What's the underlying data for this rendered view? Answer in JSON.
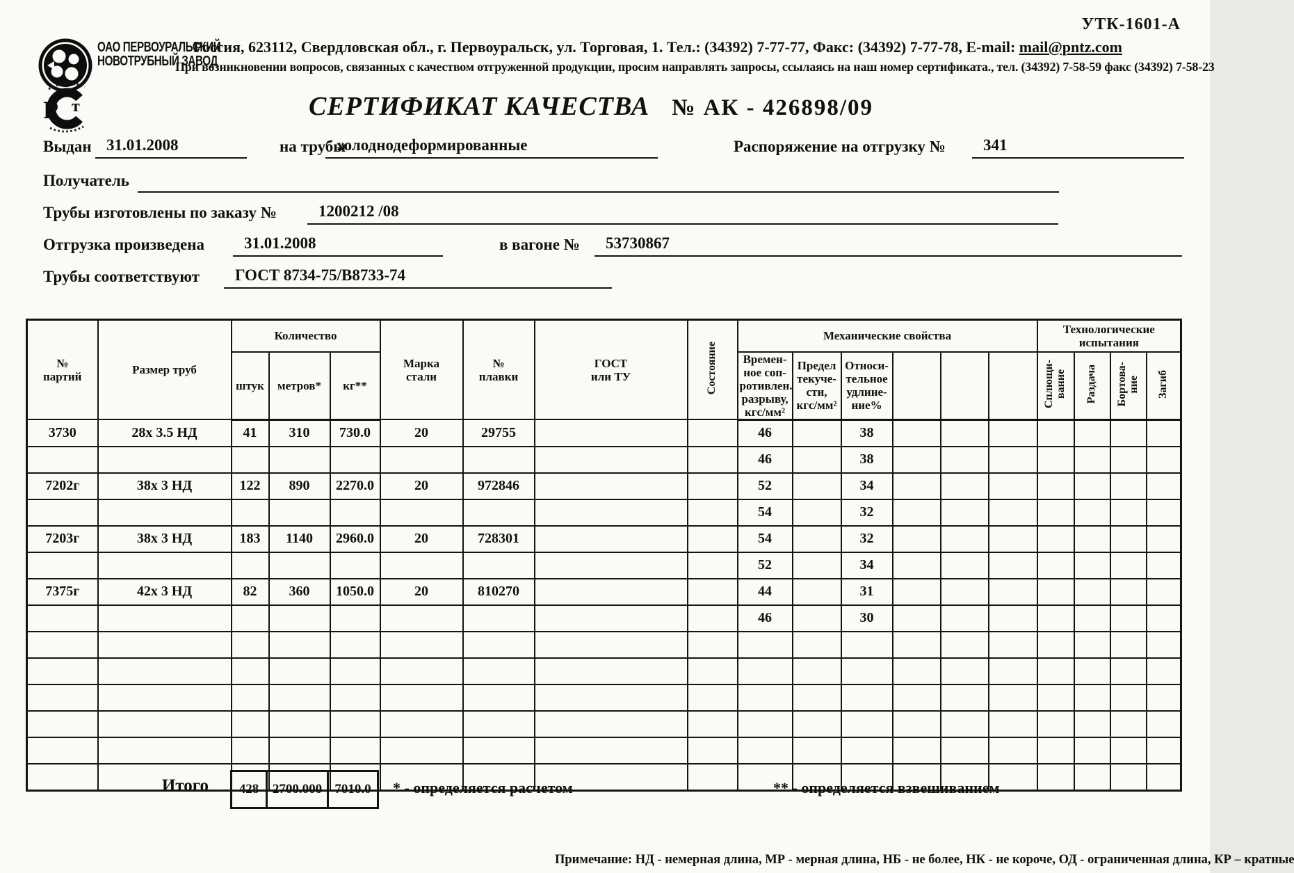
{
  "form_code": "УТК-1601-А",
  "header": {
    "company_line1": "ОАО ПЕРВОУРАЛЬСКИЙ",
    "company_line2": "НОВОТРУБНЫЙ ЗАВОД",
    "address_line": "Россия, 623112, Свердловская обл., г. Первоуральск, ул. Торговая, 1. Тел.: (34392) 7-77-77, Факс: (34392) 7-77-78,  E-mail: ",
    "email": "mail@pntz.com",
    "quality_line": "При возникновении вопросов, связанных с качеством отгруженной продукции, просим направлять запросы, ссылаясь на наш номер сертификата., тел. (34392) 7-58-59 факс (34392) 7-58-23"
  },
  "title": {
    "label": "СЕРТИФИКАТ КАЧЕСТВА",
    "number": "№  АК - 426898/09"
  },
  "fields": {
    "issued_label": "Выдан",
    "issued_value": "31.01.2008",
    "pipes_label": "на трубы",
    "pipes_value": "холоднодеформированные",
    "ship_order_label": "Распоряжение на отгрузку №",
    "ship_order_value": "341",
    "receiver_label": "Получатель",
    "receiver_value": "",
    "made_order_label": "Трубы изготовлены по заказу №",
    "made_order_value": "1200212  /08",
    "shipped_label": "Отгрузка произведена",
    "shipped_value": "31.01.2008",
    "wagon_label": "в вагоне №",
    "wagon_value": "53730867",
    "conform_label": "Трубы соответствуют",
    "conform_value": "ГОСТ 8734-75/В8733-74"
  },
  "table": {
    "headers": {
      "party": "№\nпартий",
      "size": "Размер труб",
      "qty_group": "Количество",
      "pcs": "штук",
      "meters": "метров*",
      "kg": "кг**",
      "steel": "Марка\nстали",
      "heat": "№\nплавки",
      "gost": "ГОСТ\nили ТУ",
      "state": "Состояние",
      "mech_group": "Механические свойства",
      "tensile": "Времен-\nное соп-\nротивлен.\nразрыву,\nкгс/мм²",
      "yield": "Предел\nтекуче-\nсти,\nкгс/мм²",
      "elong": "Относи-\nтельное\nудлине-\nние%",
      "tech_group": "Технологические\nиспытания",
      "flatten": "Сплющи-\nвание",
      "expand": "Раздача",
      "flange": "Бортова-\nние",
      "bend": "Загиб"
    },
    "rows": [
      [
        "3730",
        "28х 3.5 НД",
        "41",
        "310",
        "730.0",
        "20",
        "29755",
        "",
        "",
        "46",
        "",
        "38",
        "",
        "",
        "",
        "",
        "",
        "",
        ""
      ],
      [
        "",
        "",
        "",
        "",
        "",
        "",
        "",
        "",
        "",
        "46",
        "",
        "38",
        "",
        "",
        "",
        "",
        "",
        "",
        ""
      ],
      [
        "7202г",
        "38х 3 НД",
        "122",
        "890",
        "2270.0",
        "20",
        "972846",
        "",
        "",
        "52",
        "",
        "34",
        "",
        "",
        "",
        "",
        "",
        "",
        ""
      ],
      [
        "",
        "",
        "",
        "",
        "",
        "",
        "",
        "",
        "",
        "54",
        "",
        "32",
        "",
        "",
        "",
        "",
        "",
        "",
        ""
      ],
      [
        "7203г",
        "38х 3 НД",
        "183",
        "1140",
        "2960.0",
        "20",
        "728301",
        "",
        "",
        "54",
        "",
        "32",
        "",
        "",
        "",
        "",
        "",
        "",
        ""
      ],
      [
        "",
        "",
        "",
        "",
        "",
        "",
        "",
        "",
        "",
        "52",
        "",
        "34",
        "",
        "",
        "",
        "",
        "",
        "",
        ""
      ],
      [
        "7375г",
        "42х 3 НД",
        "82",
        "360",
        "1050.0",
        "20",
        "810270",
        "",
        "",
        "44",
        "",
        "31",
        "",
        "",
        "",
        "",
        "",
        "",
        ""
      ],
      [
        "",
        "",
        "",
        "",
        "",
        "",
        "",
        "",
        "",
        "46",
        "",
        "30",
        "",
        "",
        "",
        "",
        "",
        "",
        ""
      ],
      [
        "",
        "",
        "",
        "",
        "",
        "",
        "",
        "",
        "",
        "",
        "",
        "",
        "",
        "",
        "",
        "",
        "",
        "",
        ""
      ],
      [
        "",
        "",
        "",
        "",
        "",
        "",
        "",
        "",
        "",
        "",
        "",
        "",
        "",
        "",
        "",
        "",
        "",
        "",
        ""
      ],
      [
        "",
        "",
        "",
        "",
        "",
        "",
        "",
        "",
        "",
        "",
        "",
        "",
        "",
        "",
        "",
        "",
        "",
        "",
        ""
      ],
      [
        "",
        "",
        "",
        "",
        "",
        "",
        "",
        "",
        "",
        "",
        "",
        "",
        "",
        "",
        "",
        "",
        "",
        "",
        ""
      ],
      [
        "",
        "",
        "",
        "",
        "",
        "",
        "",
        "",
        "",
        "",
        "",
        "",
        "",
        "",
        "",
        "",
        "",
        "",
        ""
      ],
      [
        "",
        "",
        "",
        "",
        "",
        "",
        "",
        "",
        "",
        "",
        "",
        "",
        "",
        "",
        "",
        "",
        "",
        "",
        ""
      ]
    ],
    "totals": {
      "label": "Итого",
      "pieces": "428",
      "meters": "2700.000",
      "kg": "7010.0"
    }
  },
  "footnotes": {
    "star": "* - определяется расчетом",
    "double_star": "** - определяется взвешиванием",
    "note": "Примечание: НД - немерная длина, МР - мерная длина, НБ - не более, НК - не короче, ОД - ограниченная длина, КР – кратные"
  }
}
